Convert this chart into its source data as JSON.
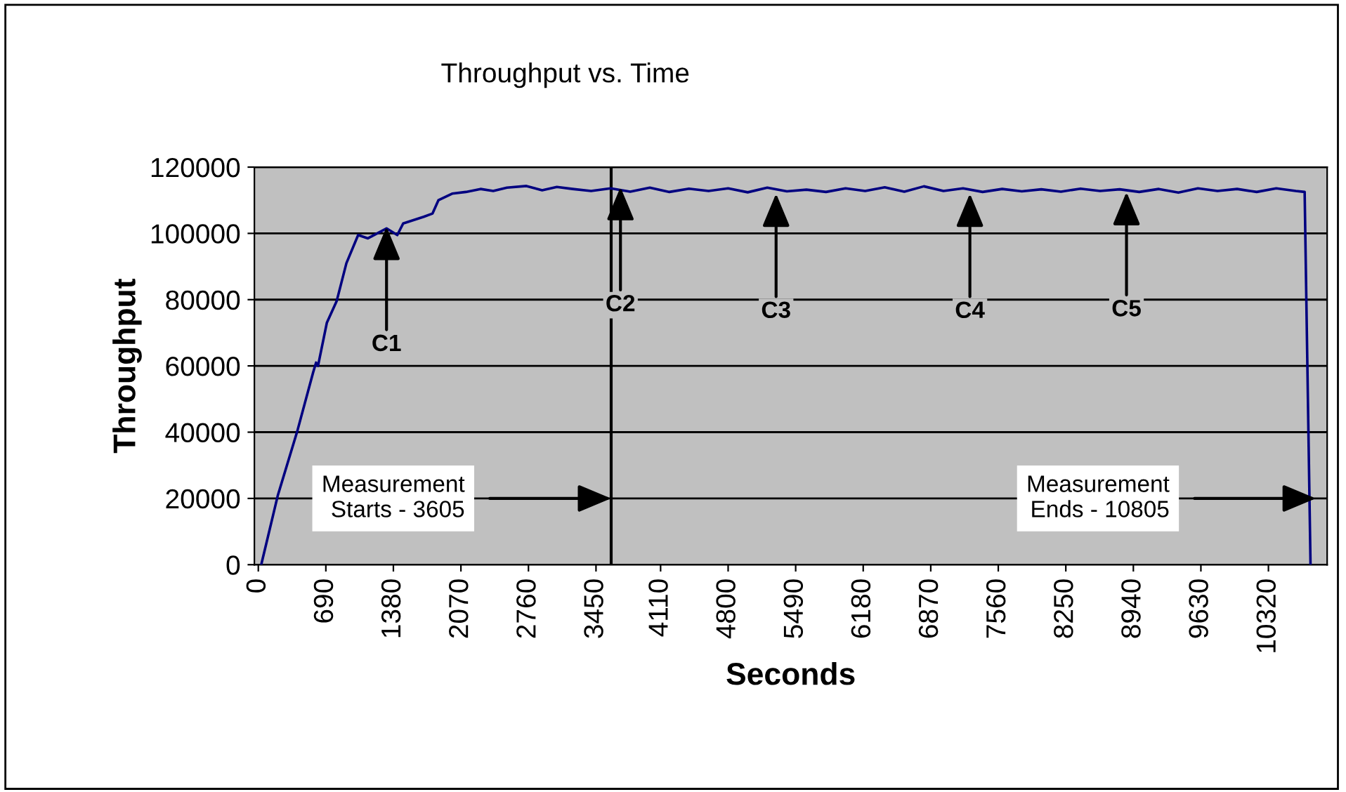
{
  "chart_data": {
    "type": "line",
    "title": "Throughput vs. Time",
    "xlabel": "Seconds",
    "ylabel": "Throughput",
    "xlim": [
      -40,
      10920
    ],
    "xticks": [
      0,
      690,
      1380,
      2070,
      2760,
      3450,
      4110,
      4800,
      5490,
      6180,
      6870,
      7560,
      8250,
      8940,
      9630,
      10320
    ],
    "ylim": [
      0,
      120000
    ],
    "yticks": [
      0,
      20000,
      40000,
      60000,
      80000,
      100000,
      120000
    ],
    "grid": "y",
    "marker": "none",
    "line_style": "solid",
    "series": [
      {
        "color": "#000080",
        "x": [
          30,
          200,
          400,
          560,
          590,
          610,
          700,
          800,
          900,
          1020,
          1120,
          1310,
          1420,
          1480,
          1690,
          1780,
          1840,
          1980,
          2120,
          2270,
          2400,
          2540,
          2740,
          2900,
          3050,
          3210,
          3400,
          3600,
          3800,
          4000,
          4200,
          4400,
          4600,
          4800,
          5000,
          5200,
          5400,
          5600,
          5800,
          6000,
          6200,
          6400,
          6600,
          6800,
          7000,
          7200,
          7400,
          7600,
          7800,
          8000,
          8200,
          8400,
          8600,
          8800,
          9000,
          9200,
          9400,
          9600,
          9800,
          10000,
          10200,
          10400,
          10600,
          10690,
          10750
        ],
        "values": [
          0,
          21000,
          40500,
          58000,
          61000,
          60000,
          73000,
          79500,
          91000,
          99500,
          98500,
          101500,
          99500,
          103000,
          105000,
          106000,
          110000,
          112000,
          112500,
          113400,
          112800,
          113800,
          114300,
          113000,
          114000,
          113400,
          112800,
          113600,
          112600,
          113800,
          112500,
          113500,
          112800,
          113600,
          112400,
          113800,
          112700,
          113200,
          112500,
          113600,
          112800,
          113900,
          112600,
          114200,
          112800,
          113600,
          112500,
          113400,
          112700,
          113300,
          112600,
          113500,
          112800,
          113300,
          112500,
          113400,
          112300,
          113600,
          112800,
          113400,
          112500,
          113600,
          112800,
          112500,
          0
        ]
      }
    ],
    "ref_lines": [
      {
        "axis": "x",
        "value": 3605,
        "color": "#000000"
      }
    ],
    "annotations": [
      {
        "text": "C1",
        "x": 1310,
        "y": 102000
      },
      {
        "text": "C2",
        "x": 3700,
        "y": 114000
      },
      {
        "text": "C3",
        "x": 5290,
        "y": 112000
      },
      {
        "text": "C4",
        "x": 7270,
        "y": 112000
      },
      {
        "text": "C5",
        "x": 8870,
        "y": 112500
      },
      {
        "text": "Measurement\nStarts - 3605",
        "x": 3605,
        "y": 20000
      },
      {
        "text": "Measurement\nEnds - 10805",
        "x": 10805,
        "y": 20000
      }
    ]
  }
}
